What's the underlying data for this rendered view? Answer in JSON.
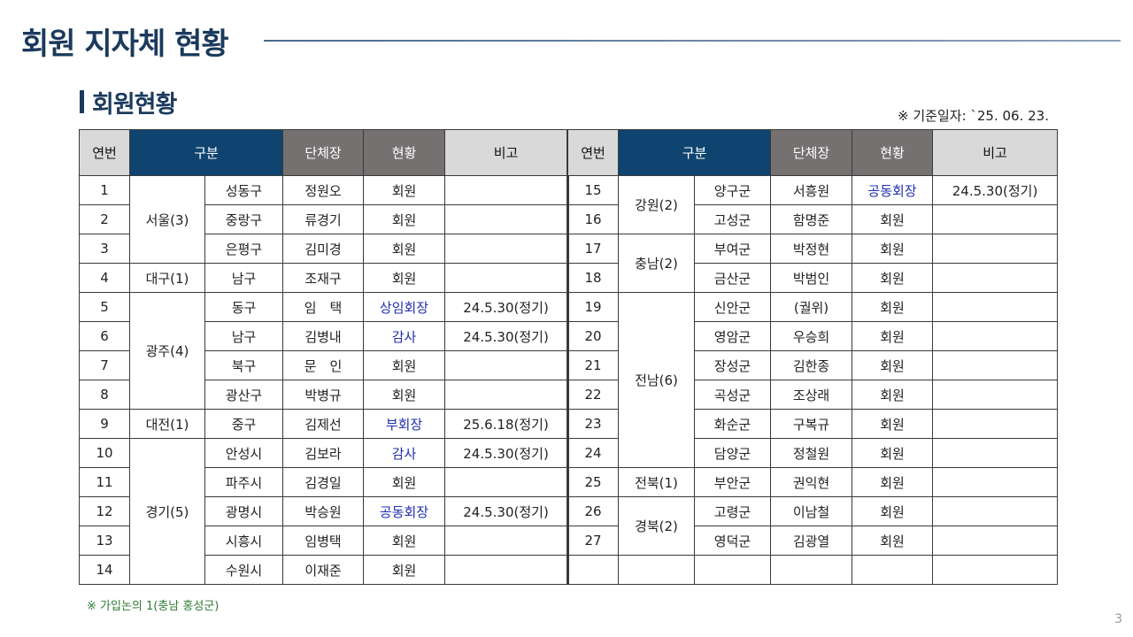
{
  "title": "회원 지자체 현황",
  "subtitle": "회원현황",
  "base_date": "※ 기준일자: `25. 06. 23.",
  "headers": {
    "no": "연번",
    "category": "구분",
    "head": "단체장",
    "status": "현황",
    "remark": "비고"
  },
  "left": {
    "regions": [
      {
        "label": "서울(3)"
      },
      {
        "label": "대구(1)"
      },
      {
        "label": "광주(4)"
      },
      {
        "label": "대전(1)"
      },
      {
        "label": "경기(5)"
      }
    ],
    "rows": [
      {
        "no": "1",
        "district": "성동구",
        "head": "정원오",
        "status": "회원",
        "remark": ""
      },
      {
        "no": "2",
        "district": "중랑구",
        "head": "류경기",
        "status": "회원",
        "remark": ""
      },
      {
        "no": "3",
        "district": "은평구",
        "head": "김미경",
        "status": "회원",
        "remark": ""
      },
      {
        "no": "4",
        "district": "남구",
        "head": "조재구",
        "status": "회원",
        "remark": ""
      },
      {
        "no": "5",
        "district": "동구",
        "head": "임　택",
        "status": "상임회장",
        "remark": "24.5.30(정기)"
      },
      {
        "no": "6",
        "district": "남구",
        "head": "김병내",
        "status": "감사",
        "remark": "24.5.30(정기)"
      },
      {
        "no": "7",
        "district": "북구",
        "head": "문　인",
        "status": "회원",
        "remark": ""
      },
      {
        "no": "8",
        "district": "광산구",
        "head": "박병규",
        "status": "회원",
        "remark": ""
      },
      {
        "no": "9",
        "district": "중구",
        "head": "김제선",
        "status": "부회장",
        "remark": "25.6.18(정기)"
      },
      {
        "no": "10",
        "district": "안성시",
        "head": "김보라",
        "status": "감사",
        "remark": "24.5.30(정기)"
      },
      {
        "no": "11",
        "district": "파주시",
        "head": "김경일",
        "status": "회원",
        "remark": ""
      },
      {
        "no": "12",
        "district": "광명시",
        "head": "박승원",
        "status": "공동회장",
        "remark": "24.5.30(정기)"
      },
      {
        "no": "13",
        "district": "시흥시",
        "head": "임병택",
        "status": "회원",
        "remark": ""
      },
      {
        "no": "14",
        "district": "수원시",
        "head": "이재준",
        "status": "회원",
        "remark": ""
      }
    ]
  },
  "right": {
    "regions": [
      {
        "label": "강원(2)"
      },
      {
        "label": "충남(2)"
      },
      {
        "label": "전남(6)"
      },
      {
        "label": "전북(1)"
      },
      {
        "label": "경북(2)"
      }
    ],
    "rows": [
      {
        "no": "15",
        "district": "양구군",
        "head": "서흥원",
        "status": "공동회장",
        "remark": "24.5.30(정기)"
      },
      {
        "no": "16",
        "district": "고성군",
        "head": "함명준",
        "status": "회원",
        "remark": ""
      },
      {
        "no": "17",
        "district": "부여군",
        "head": "박정현",
        "status": "회원",
        "remark": ""
      },
      {
        "no": "18",
        "district": "금산군",
        "head": "박범인",
        "status": "회원",
        "remark": ""
      },
      {
        "no": "19",
        "district": "신안군",
        "head": "(궐위)",
        "status": "회원",
        "remark": ""
      },
      {
        "no": "20",
        "district": "영암군",
        "head": "우승희",
        "status": "회원",
        "remark": ""
      },
      {
        "no": "21",
        "district": "장성군",
        "head": "김한종",
        "status": "회원",
        "remark": ""
      },
      {
        "no": "22",
        "district": "곡성군",
        "head": "조상래",
        "status": "회원",
        "remark": ""
      },
      {
        "no": "23",
        "district": "화순군",
        "head": "구복규",
        "status": "회원",
        "remark": ""
      },
      {
        "no": "24",
        "district": "담양군",
        "head": "정철원",
        "status": "회원",
        "remark": ""
      },
      {
        "no": "25",
        "district": "부안군",
        "head": "권익현",
        "status": "회원",
        "remark": ""
      },
      {
        "no": "26",
        "district": "고령군",
        "head": "이남철",
        "status": "회원",
        "remark": ""
      },
      {
        "no": "27",
        "district": "영덕군",
        "head": "김광열",
        "status": "회원",
        "remark": ""
      }
    ]
  },
  "footnote": "※ 가입논의 1(충남 홍성군)",
  "page_number": "3",
  "colors": {
    "title": "#1b3a5c",
    "header_navy": "#0f4470",
    "header_dark": "#757171",
    "header_gray": "#d9d9d9",
    "officer_text": "#1f2fb0",
    "footnote": "#2e7d32"
  }
}
